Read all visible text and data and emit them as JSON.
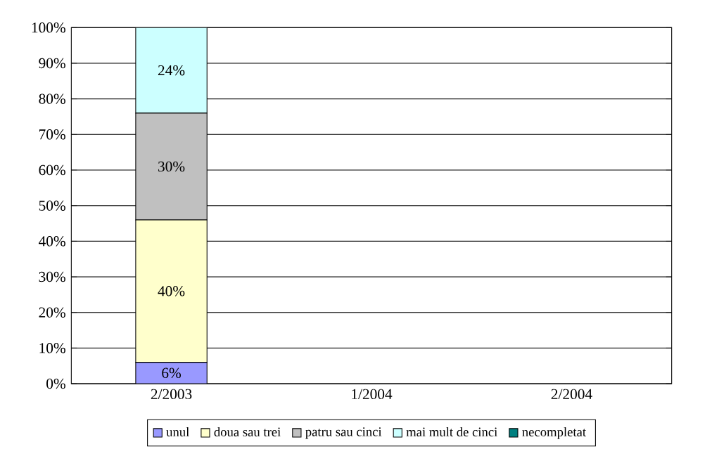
{
  "chart_data": {
    "type": "bar",
    "stacked": true,
    "categories": [
      "2/2003",
      "1/2004",
      "2/2004"
    ],
    "series": [
      {
        "name": "unul",
        "color": "#9999ff",
        "values": [
          6,
          null,
          null
        ],
        "value_labels": [
          "6%",
          null,
          null
        ]
      },
      {
        "name": "doua sau trei",
        "color": "#ffffcc",
        "values": [
          40,
          null,
          null
        ],
        "value_labels": [
          "40%",
          null,
          null
        ]
      },
      {
        "name": "patru sau cinci",
        "color": "#c0c0c0",
        "values": [
          30,
          null,
          null
        ],
        "value_labels": [
          "30%",
          null,
          null
        ]
      },
      {
        "name": "mai mult de cinci",
        "color": "#ccffff",
        "values": [
          24,
          null,
          null
        ],
        "value_labels": [
          "24%",
          null,
          null
        ]
      },
      {
        "name": "necompletat",
        "color": "#008080",
        "values": [
          null,
          null,
          null
        ]
      }
    ],
    "ylim": [
      0,
      100
    ],
    "yticks": [
      {
        "value": 0,
        "label": "0%"
      },
      {
        "value": 10,
        "label": "10%"
      },
      {
        "value": 20,
        "label": "20%"
      },
      {
        "value": 30,
        "label": "30%"
      },
      {
        "value": 40,
        "label": "40%"
      },
      {
        "value": 50,
        "label": "50%"
      },
      {
        "value": 60,
        "label": "60%"
      },
      {
        "value": 70,
        "label": "70%"
      },
      {
        "value": 80,
        "label": "80%"
      },
      {
        "value": 90,
        "label": "90%"
      },
      {
        "value": 100,
        "label": "100%"
      }
    ],
    "grid": "y",
    "legend": "bottom"
  }
}
